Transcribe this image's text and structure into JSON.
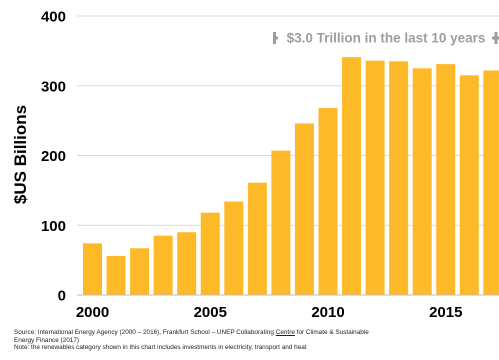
{
  "chart_data": {
    "type": "bar",
    "ylabel": "$US Billions",
    "xlabel": "",
    "ylim": [
      0,
      400
    ],
    "yticks": [
      0,
      100,
      200,
      300,
      400
    ],
    "xticks": [
      2000,
      2005,
      2010,
      2015
    ],
    "x": [
      2000,
      2001,
      2002,
      2003,
      2004,
      2005,
      2006,
      2007,
      2008,
      2009,
      2010,
      2011,
      2012,
      2013,
      2014,
      2015,
      2016,
      2017
    ],
    "values": [
      74,
      56,
      67,
      85,
      90,
      118,
      134,
      161,
      207,
      246,
      268,
      341,
      336,
      335,
      325,
      331,
      315,
      322
    ],
    "grid": true,
    "bar_color": "#FDB927",
    "annotation": {
      "text": "$3.0 Trillion in the last 10 years",
      "from_x": 2008,
      "to_x": 2017,
      "color": "#9E9E9E"
    }
  },
  "notes": {
    "source_prefix": "Source: International Energy Agency (2000 – 2016), Frankfurt School – UNEP Collaborating ",
    "source_underlined": "Centre",
    "source_suffix": " for Climate & Sustainable",
    "source_line2": "Energy Finance (2017)",
    "note_line": "Note: the renewables category shown in this chart includes investments in electricity, transport and heat"
  }
}
